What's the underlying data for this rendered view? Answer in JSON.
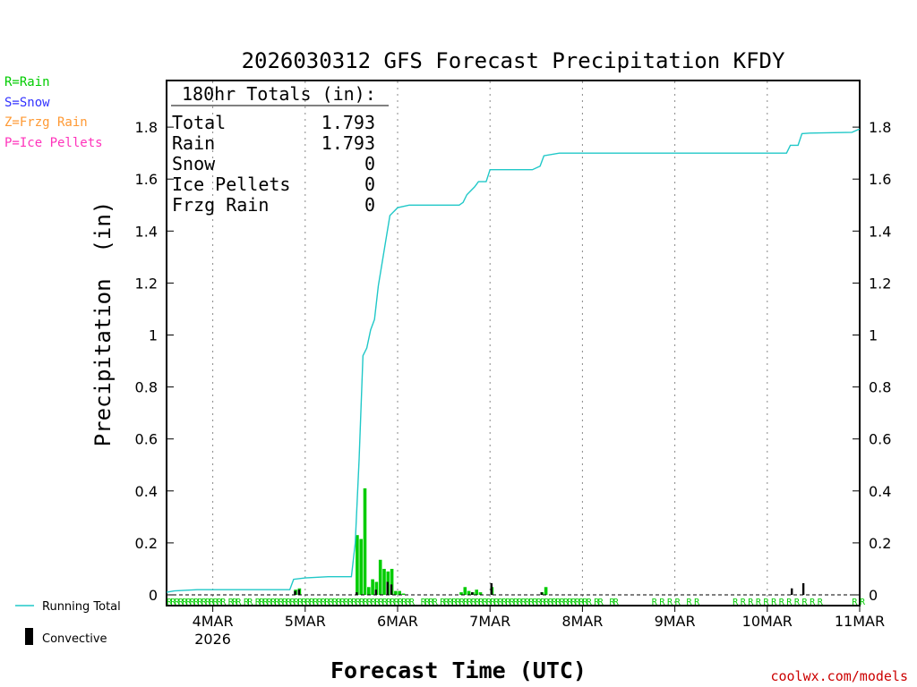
{
  "chart_data": {
    "type": "bar",
    "title": "2026030312 GFS Forecast Precipitation KFDY",
    "ylabel": "Precipitation  (in)",
    "xlabel": "Forecast Time (UTC)",
    "ylim": [
      0,
      1.94
    ],
    "yticks": [
      "0",
      "0.2",
      "0.4",
      "0.6",
      "0.8",
      "1",
      "1.2",
      "1.4",
      "1.6",
      "1.8"
    ],
    "ytick_values": [
      0,
      0.2,
      0.4,
      0.6,
      0.8,
      1.0,
      1.2,
      1.4,
      1.6,
      1.8
    ],
    "x_range_hours": [
      0,
      180
    ],
    "x_ticks": [
      {
        "label": "4MAR",
        "sub": "2026",
        "hour": 12
      },
      {
        "label": "5MAR",
        "sub": "",
        "hour": 36
      },
      {
        "label": "6MAR",
        "sub": "",
        "hour": 60
      },
      {
        "label": "7MAR",
        "sub": "",
        "hour": 84
      },
      {
        "label": "8MAR",
        "sub": "",
        "hour": 108
      },
      {
        "label": "9MAR",
        "sub": "",
        "hour": 132
      },
      {
        "label": "10MAR",
        "sub": "",
        "hour": 156
      },
      {
        "label": "11MAR",
        "sub": "",
        "hour": 180
      }
    ],
    "totals_box": {
      "header": "180hr Totals (in):",
      "rows": [
        {
          "label": "Total",
          "value": "1.793"
        },
        {
          "label": "Rain",
          "value": "1.793"
        },
        {
          "label": "Snow",
          "value": "0"
        },
        {
          "label": "Ice Pellets",
          "value": "0"
        },
        {
          "label": "Frzg Rain",
          "value": "0"
        }
      ]
    },
    "series": [
      {
        "name": "Running Total",
        "type": "line",
        "color": "#20c8c8",
        "points": [
          [
            0,
            0.01
          ],
          [
            2,
            0.015
          ],
          [
            8,
            0.02
          ],
          [
            32,
            0.02
          ],
          [
            33,
            0.06
          ],
          [
            36,
            0.065
          ],
          [
            42,
            0.07
          ],
          [
            48,
            0.07
          ],
          [
            49,
            0.2
          ],
          [
            50,
            0.52
          ],
          [
            51,
            0.92
          ],
          [
            52,
            0.95
          ],
          [
            53,
            1.02
          ],
          [
            54,
            1.06
          ],
          [
            55,
            1.19
          ],
          [
            56,
            1.28
          ],
          [
            57,
            1.37
          ],
          [
            58,
            1.46
          ],
          [
            60,
            1.49
          ],
          [
            63,
            1.5
          ],
          [
            76,
            1.5
          ],
          [
            77,
            1.51
          ],
          [
            78,
            1.54
          ],
          [
            80,
            1.57
          ],
          [
            81,
            1.59
          ],
          [
            83,
            1.59
          ],
          [
            84,
            1.636
          ],
          [
            95,
            1.636
          ],
          [
            97,
            1.65
          ],
          [
            98,
            1.69
          ],
          [
            102,
            1.7
          ],
          [
            161,
            1.7
          ],
          [
            162,
            1.73
          ],
          [
            164,
            1.73
          ],
          [
            165,
            1.775
          ],
          [
            167,
            1.777
          ],
          [
            178,
            1.78
          ],
          [
            180,
            1.793
          ]
        ]
      },
      {
        "name": "Rain",
        "type": "bar",
        "color": "#00cc00",
        "hours": [
          33,
          34,
          49,
          50,
          51,
          52,
          53,
          54,
          55,
          56,
          57,
          58,
          59,
          60,
          61,
          76,
          77,
          78,
          79,
          80,
          81,
          84,
          97,
          98
        ],
        "values": [
          0.02,
          0.025,
          0.23,
          0.215,
          0.41,
          0.03,
          0.06,
          0.05,
          0.135,
          0.1,
          0.09,
          0.1,
          0.015,
          0.015,
          0.005,
          0.01,
          0.03,
          0.015,
          0.01,
          0.02,
          0.01,
          0.03,
          0.01,
          0.03
        ]
      },
      {
        "name": "Convective",
        "type": "bar",
        "color": "#000000",
        "hours": [
          33,
          34,
          49,
          54,
          57,
          58,
          79,
          84,
          97,
          162,
          165
        ],
        "values": [
          0.015,
          0.02,
          0.01,
          0.02,
          0.05,
          0.04,
          0.01,
          0.045,
          0.01,
          0.025,
          0.045
        ]
      }
    ],
    "ptype_strip": {
      "letter": "R",
      "hours": [
        0,
        1,
        2,
        3,
        4,
        5,
        6,
        7,
        8,
        9,
        10,
        11,
        12,
        13,
        14,
        16,
        17,
        18,
        20,
        21,
        23,
        24,
        25,
        26,
        27,
        28,
        29,
        30,
        31,
        32,
        33,
        34,
        35,
        36,
        37,
        38,
        39,
        40,
        41,
        42,
        43,
        44,
        45,
        46,
        47,
        48,
        49,
        50,
        51,
        52,
        53,
        54,
        55,
        56,
        57,
        58,
        59,
        60,
        61,
        62,
        63,
        66,
        67,
        68,
        69,
        71,
        72,
        73,
        74,
        75,
        76,
        77,
        78,
        79,
        80,
        81,
        82,
        83,
        84,
        85,
        86,
        87,
        88,
        89,
        90,
        91,
        92,
        93,
        94,
        95,
        96,
        97,
        98,
        99,
        100,
        101,
        102,
        103,
        104,
        105,
        106,
        107,
        108,
        109,
        111,
        112,
        115,
        116,
        126,
        128,
        130,
        132,
        135,
        137,
        147,
        149,
        151,
        153,
        155,
        157,
        159,
        161,
        163,
        165,
        167,
        169,
        178,
        180
      ]
    },
    "legend": {
      "ptype_keys": [
        {
          "text": "R=Rain",
          "color": "#00cc00"
        },
        {
          "text": "S=Snow",
          "color": "#3333ff"
        },
        {
          "text": "Z=Frzg Rain",
          "color": "#ff9933"
        },
        {
          "text": "P=Ice Pellets",
          "color": "#ff33bb"
        }
      ],
      "running_total": "Running Total",
      "convective": "Convective"
    },
    "watermark": "coolwx.com/models"
  }
}
